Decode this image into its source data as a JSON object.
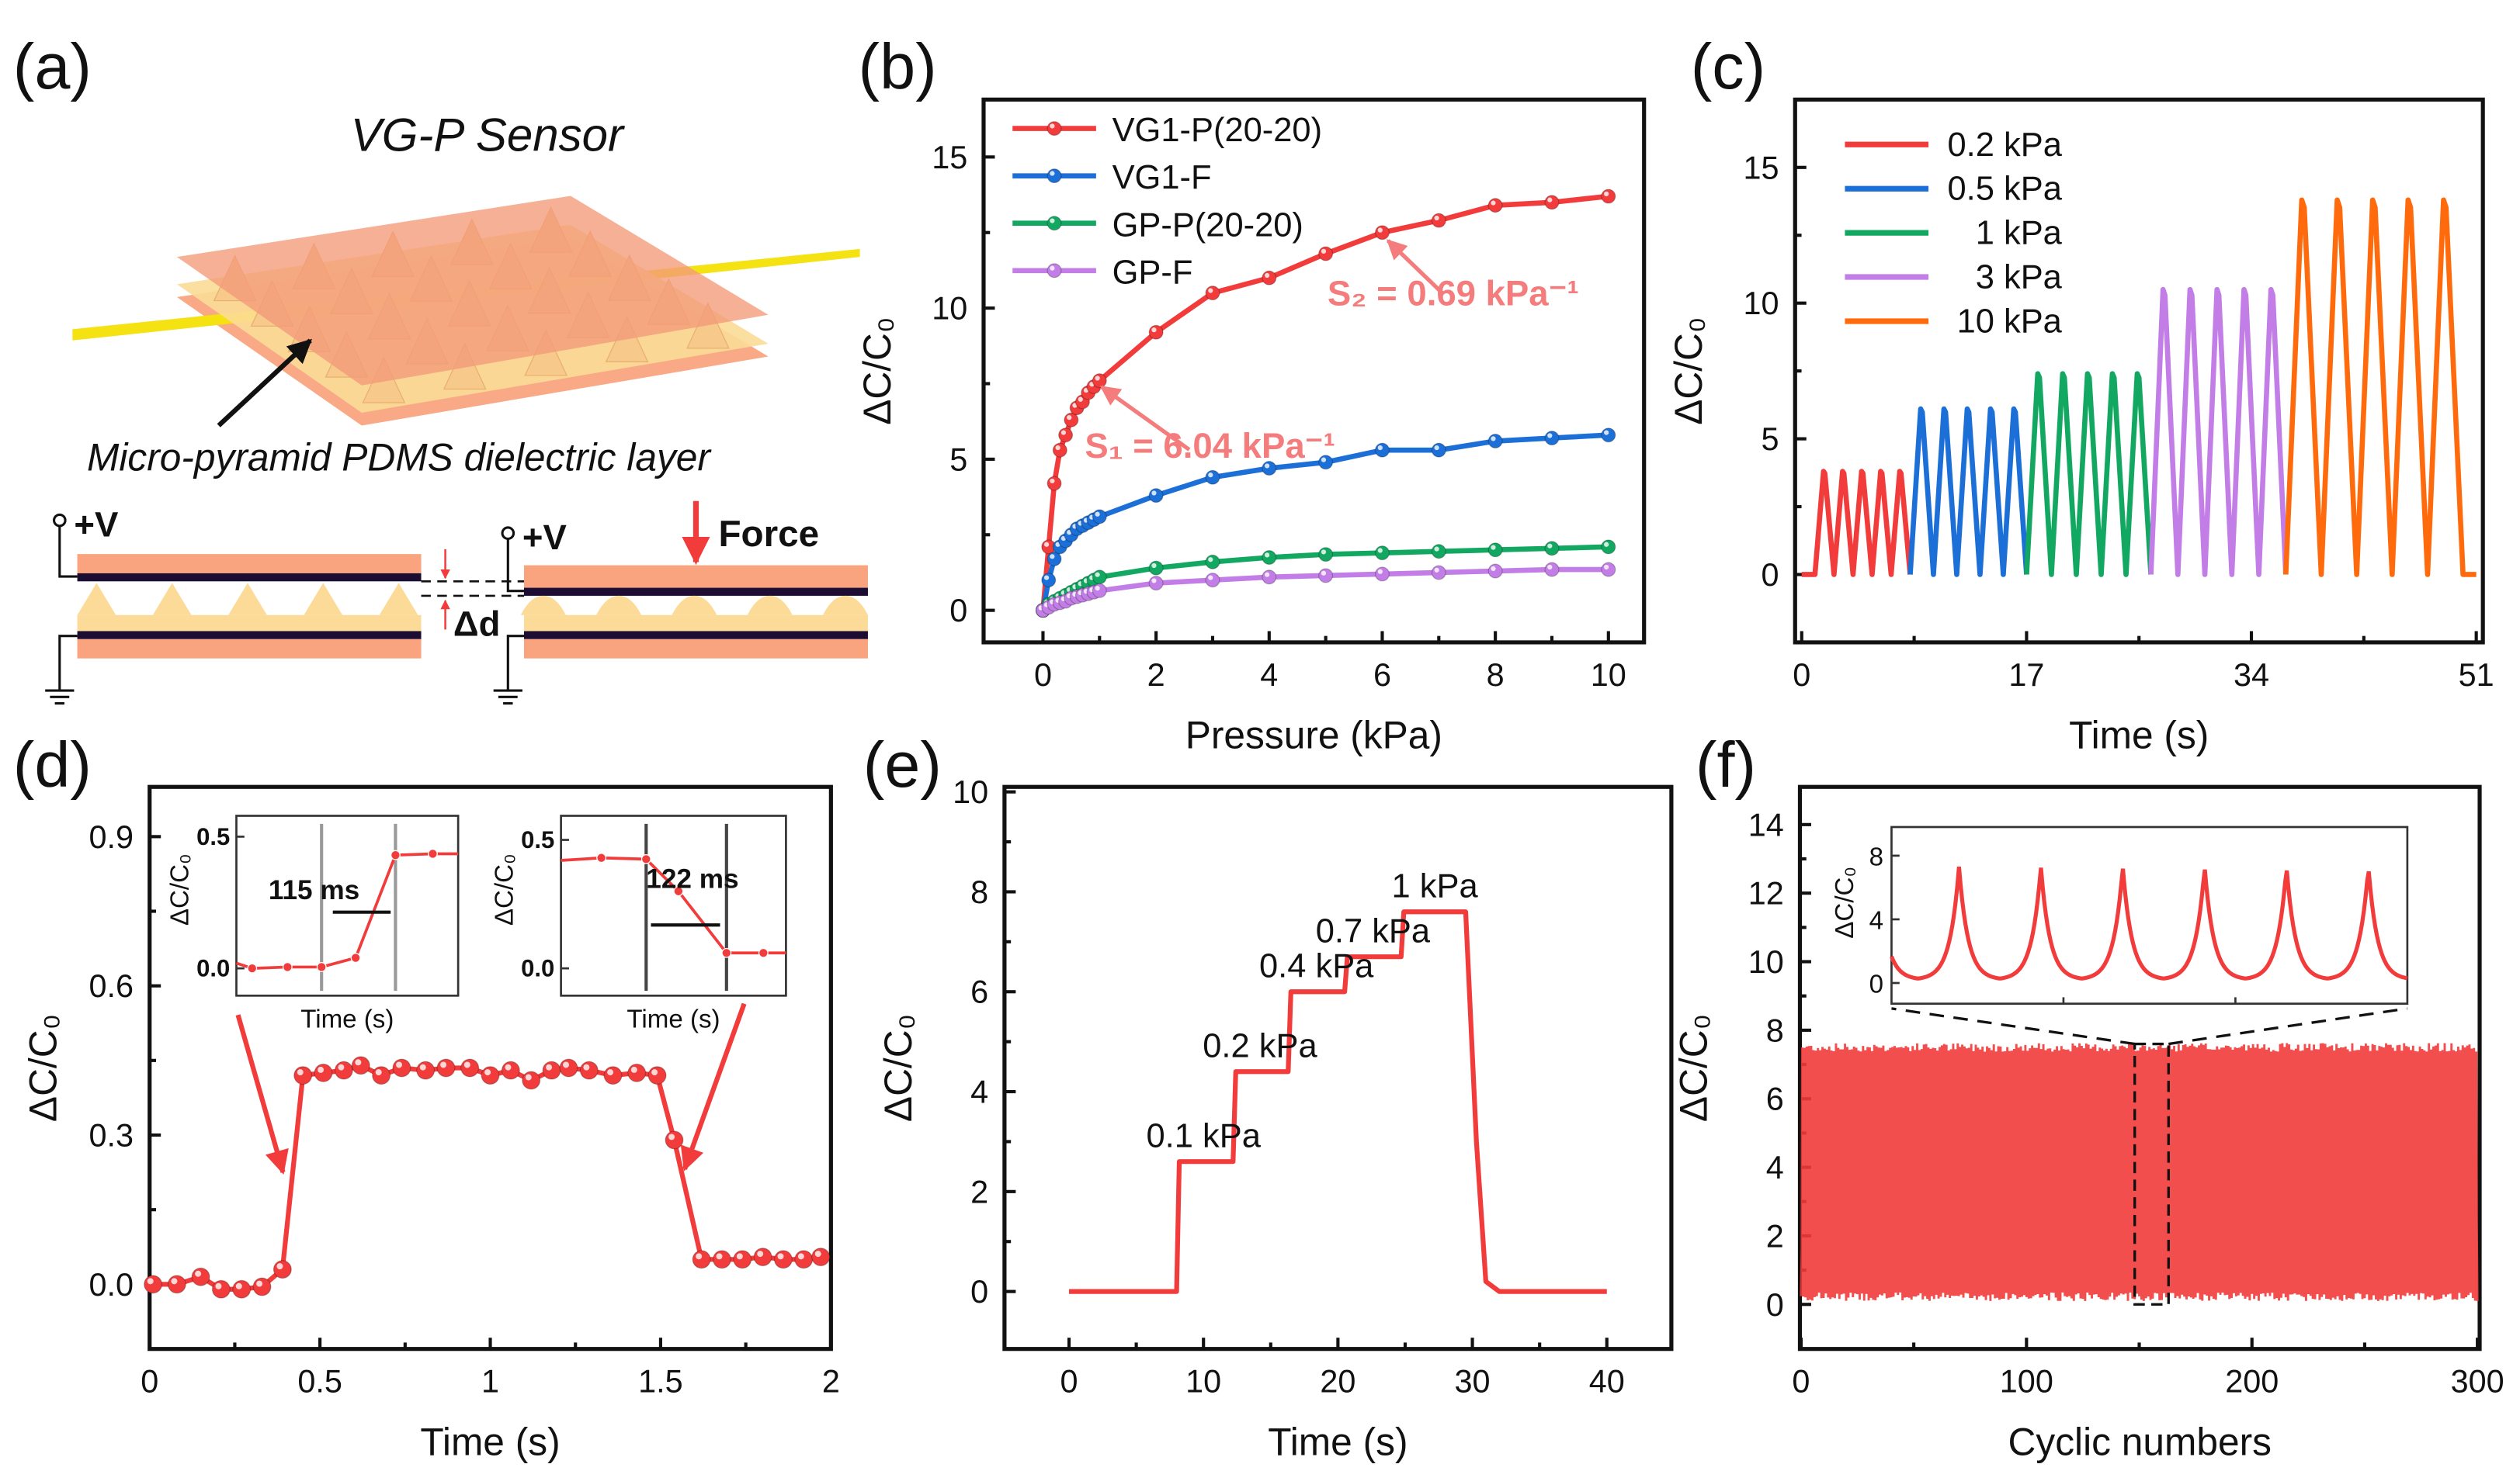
{
  "panel_a": {
    "label": "(a)",
    "title": "VG-P Sensor",
    "arrow_label": "Micro-pyramid PDMS dielectric layer",
    "voltage_left": "+V",
    "voltage_right": "+V",
    "force_label": "Force",
    "gap_label": "Δd",
    "colors": {
      "electrode": "#f9a47e",
      "dielectric": "#fbdb97",
      "conductor": "#1c0d33",
      "lead": "#f4e212",
      "force": "#ef3c3c"
    }
  },
  "chart_data": [
    {
      "panel": "(b)",
      "type": "line",
      "xlabel": "Pressure (kPa)",
      "ylabel": "ΔC/C₀",
      "xlim": [
        -1.05,
        10.63
      ],
      "ylim": [
        -1.06,
        16.9
      ],
      "xticks": [
        "0",
        "2",
        "4",
        "6",
        "8",
        "10"
      ],
      "yticks": [
        "0",
        "5",
        "10",
        "15"
      ],
      "legend": "top-left",
      "markers": true,
      "x": [
        0,
        0.1,
        0.2,
        0.3,
        0.4,
        0.5,
        0.6,
        0.7,
        0.8,
        0.9,
        1,
        2,
        3,
        4,
        5,
        6,
        7,
        8,
        9,
        10
      ],
      "series": [
        {
          "name": "VG1-P(20-20)",
          "color": "#f23b3b",
          "values": [
            0,
            2.1,
            4.2,
            5.3,
            5.8,
            6.3,
            6.7,
            6.9,
            7.2,
            7.4,
            7.6,
            9.2,
            10.5,
            11.0,
            11.8,
            12.5,
            12.9,
            13.4,
            13.5,
            13.7
          ]
        },
        {
          "name": "VG1-F",
          "color": "#1c6fd6",
          "values": [
            0,
            1.0,
            1.7,
            2.1,
            2.3,
            2.5,
            2.7,
            2.8,
            2.9,
            3.0,
            3.1,
            3.8,
            4.4,
            4.7,
            4.9,
            5.3,
            5.3,
            5.6,
            5.7,
            5.8
          ]
        },
        {
          "name": "GP-P(20-20)",
          "color": "#12a862",
          "values": [
            0,
            0.2,
            0.3,
            0.4,
            0.5,
            0.6,
            0.7,
            0.8,
            0.9,
            1.0,
            1.1,
            1.4,
            1.6,
            1.75,
            1.85,
            1.9,
            1.95,
            2.0,
            2.05,
            2.1
          ]
        },
        {
          "name": "GP-F",
          "color": "#c27ee6",
          "values": [
            0,
            0.1,
            0.2,
            0.25,
            0.3,
            0.4,
            0.45,
            0.5,
            0.55,
            0.6,
            0.65,
            0.9,
            1.0,
            1.1,
            1.15,
            1.2,
            1.25,
            1.3,
            1.35,
            1.35
          ]
        }
      ],
      "annotations": [
        {
          "text": "S₂ = 0.69 kPa⁻¹",
          "points_to": [
            6.1,
            12.5
          ],
          "color": "#f47c7c"
        },
        {
          "text": "S₁ = 6.04 kPa⁻¹",
          "points_to": [
            0.95,
            7.5
          ],
          "color": "#f47c7c"
        }
      ]
    },
    {
      "panel": "(c)",
      "type": "line",
      "xlabel": "Time (s)",
      "ylabel": "ΔC/C₀",
      "xlim": [
        -0.5,
        51.5
      ],
      "ylim": [
        -2.5,
        17.5
      ],
      "xticks": [
        "0",
        "17",
        "34",
        "51"
      ],
      "yticks": [
        "0",
        "5",
        "10",
        "15"
      ],
      "legend": "top-left",
      "cycles_per_series": 5,
      "series": [
        {
          "name": "0.2 kPa",
          "color": "#f23b3b",
          "start": 1.0,
          "end": 8.2,
          "peak": 3.8
        },
        {
          "name": "0.5 kPa",
          "color": "#1c6fd6",
          "start": 8.2,
          "end": 17.0,
          "peak": 6.1
        },
        {
          "name": "1  kPa",
          "color": "#12a862",
          "start": 17.0,
          "end": 26.4,
          "peak": 7.4
        },
        {
          "name": "3  kPa",
          "color": "#c27ee6",
          "start": 26.4,
          "end": 36.6,
          "peak": 10.5
        },
        {
          "name": "10  kPa",
          "color": "#ff6a0d",
          "start": 36.6,
          "end": 50.0,
          "peak": 13.8
        }
      ]
    },
    {
      "panel": "(d)",
      "type": "line",
      "xlabel": "Time (s)",
      "ylabel": "ΔC/C₀",
      "xlim": [
        0,
        2
      ],
      "ylim": [
        -0.13,
        1.0
      ],
      "xticks": [
        "0",
        "0.5",
        "1",
        "1.5",
        "2"
      ],
      "yticks": [
        "0.0",
        "0.3",
        "0.6",
        "0.9"
      ],
      "color": "#f23b3b",
      "markers": true,
      "x": [
        0.01,
        0.08,
        0.15,
        0.21,
        0.27,
        0.33,
        0.39,
        0.45,
        0.51,
        0.57,
        0.62,
        0.68,
        0.74,
        0.81,
        0.87,
        0.94,
        1.0,
        1.06,
        1.12,
        1.18,
        1.23,
        1.29,
        1.36,
        1.43,
        1.49,
        1.54,
        1.62,
        1.68,
        1.74,
        1.8,
        1.86,
        1.92,
        1.97
      ],
      "y": [
        0,
        0,
        0.015,
        -0.01,
        -0.01,
        -0.005,
        0.03,
        0.42,
        0.425,
        0.43,
        0.44,
        0.42,
        0.435,
        0.43,
        0.435,
        0.435,
        0.42,
        0.43,
        0.41,
        0.43,
        0.435,
        0.43,
        0.42,
        0.425,
        0.42,
        0.29,
        0.05,
        0.05,
        0.05,
        0.055,
        0.05,
        0.05,
        0.055
      ],
      "insets": [
        {
          "xlabel": "Time (s)",
          "ylabel": "ΔC/C₀",
          "yticks": [
            "0.0",
            "0.5"
          ],
          "label": "115 ms",
          "x_ms": [
            -135,
            -108,
            -53,
            0,
            53,
            115,
            173
          ],
          "y": [
            0.02,
            0.0,
            0.005,
            0.005,
            0.04,
            0.43,
            0.435
          ],
          "markers_at": [
            0,
            115
          ]
        },
        {
          "xlabel": "Time (s)",
          "ylabel": "ΔC/C₀",
          "yticks": [
            "0.0",
            "0.5"
          ],
          "label": "122 ms",
          "x_ms": [
            -130,
            -68,
            0,
            49,
            122,
            178
          ],
          "y": [
            0.42,
            0.43,
            0.425,
            0.3,
            0.06,
            0.06
          ],
          "markers_at": [
            0,
            122
          ]
        }
      ]
    },
    {
      "panel": "(e)",
      "type": "line",
      "xlabel": "Time (s)",
      "ylabel": "ΔC/C₀",
      "xlim": [
        -4.8,
        44.8
      ],
      "ylim": [
        -1.15,
        10.1
      ],
      "xticks": [
        "0",
        "10",
        "20",
        "30",
        "40"
      ],
      "yticks": [
        "0",
        "2",
        "4",
        "6",
        "8",
        "10"
      ],
      "color": "#f23b3b",
      "x": [
        0,
        8,
        8.2,
        12.2,
        12.4,
        16.3,
        16.5,
        20.5,
        20.7,
        24.7,
        24.9,
        29.5,
        30.3,
        31,
        32,
        40
      ],
      "y": [
        0,
        0,
        2.6,
        2.6,
        4.4,
        4.4,
        6.0,
        6.0,
        6.7,
        6.7,
        7.6,
        7.6,
        3.0,
        0.2,
        0,
        0
      ],
      "step_labels": [
        {
          "text": "0.1 kPa",
          "at": [
            10,
            2.6
          ]
        },
        {
          "text": "0.2 kPa",
          "at": [
            14.2,
            4.4
          ]
        },
        {
          "text": "0.4 kPa",
          "at": [
            18.4,
            6.0
          ]
        },
        {
          "text": "0.7 kPa",
          "at": [
            22.6,
            6.7
          ]
        },
        {
          "text": "1 kPa",
          "at": [
            27.2,
            7.6
          ]
        }
      ]
    },
    {
      "panel": "(f)",
      "type": "line",
      "xlabel": "Cyclic numbers",
      "ylabel": "ΔC/C₀",
      "xlim": [
        -0.5,
        301
      ],
      "ylim": [
        -1.3,
        15.1
      ],
      "xticks": [
        "0",
        "100",
        "200",
        "300"
      ],
      "yticks": [
        "0",
        "2",
        "4",
        "6",
        "8",
        "10",
        "12",
        "14"
      ],
      "color": "#f23b3b",
      "cycles": 300,
      "peak": 7.5,
      "baseline": 0.1,
      "zoom_window": [
        148,
        163
      ],
      "inset": {
        "ylabel": "ΔC/C₀",
        "yticks": [
          "0",
          "4",
          "8"
        ],
        "ylim": [
          -1.3,
          9.8
        ],
        "peaks": 6,
        "peak": 7.3,
        "baseline": 0.2
      }
    }
  ]
}
